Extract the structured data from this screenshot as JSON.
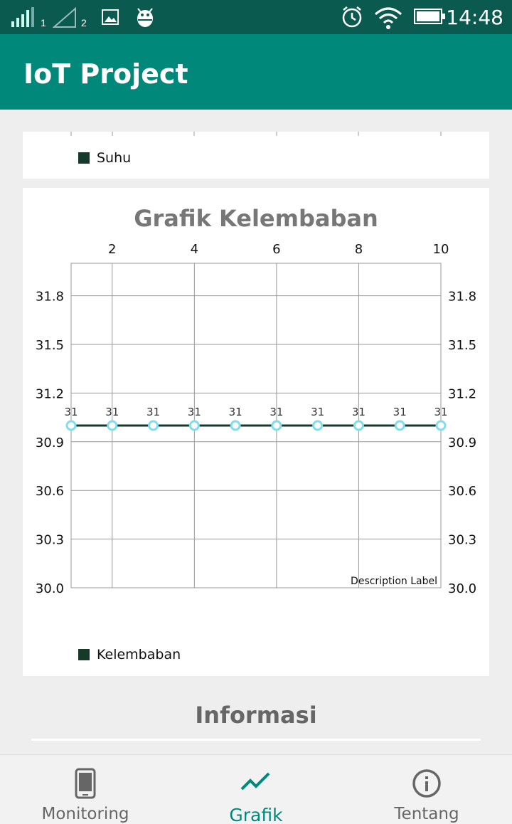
{
  "status_bar": {
    "sim1_label": "1",
    "sim2_label": "2",
    "time": "14:48",
    "icons": [
      "signal-icon",
      "signal-empty-icon",
      "image-icon",
      "android-debug-icon",
      "alarm-icon",
      "wifi-icon",
      "battery-icon"
    ]
  },
  "app_bar": {
    "title": "IoT Project"
  },
  "suhu_card": {
    "legend_label": "Suhu"
  },
  "kelembaban_card": {
    "title": "Grafik Kelembaban",
    "legend_label": "Kelembaban",
    "description_label": "Description Label",
    "line_color": "#163a2a",
    "point_color": "#80deea"
  },
  "chart_data": {
    "type": "line",
    "title": "Grafik Kelembaban",
    "x": [
      1,
      2,
      3,
      4,
      5,
      6,
      7,
      8,
      9,
      10
    ],
    "x_ticks": [
      "2",
      "4",
      "6",
      "8",
      "10"
    ],
    "xlim": [
      1,
      10
    ],
    "ylim": [
      30.0,
      32.0
    ],
    "y_ticks": [
      "30.0",
      "30.3",
      "30.6",
      "30.9",
      "31.2",
      "31.5",
      "31.8"
    ],
    "series": [
      {
        "name": "Kelembaban",
        "values": [
          31,
          31,
          31,
          31,
          31,
          31,
          31,
          31,
          31,
          31
        ],
        "value_labels": [
          "31",
          "31",
          "31",
          "31",
          "31",
          "31",
          "31",
          "31",
          "31",
          "31"
        ]
      }
    ],
    "grid": true,
    "legend": "bottom-left"
  },
  "info": {
    "title": "Informasi"
  },
  "bottom_nav": {
    "items": [
      {
        "label": "Monitoring",
        "icon": "phone-icon"
      },
      {
        "label": "Grafik",
        "icon": "chart-line-icon"
      },
      {
        "label": "Tentang",
        "icon": "info-icon"
      }
    ],
    "active_color": "#00897b"
  }
}
